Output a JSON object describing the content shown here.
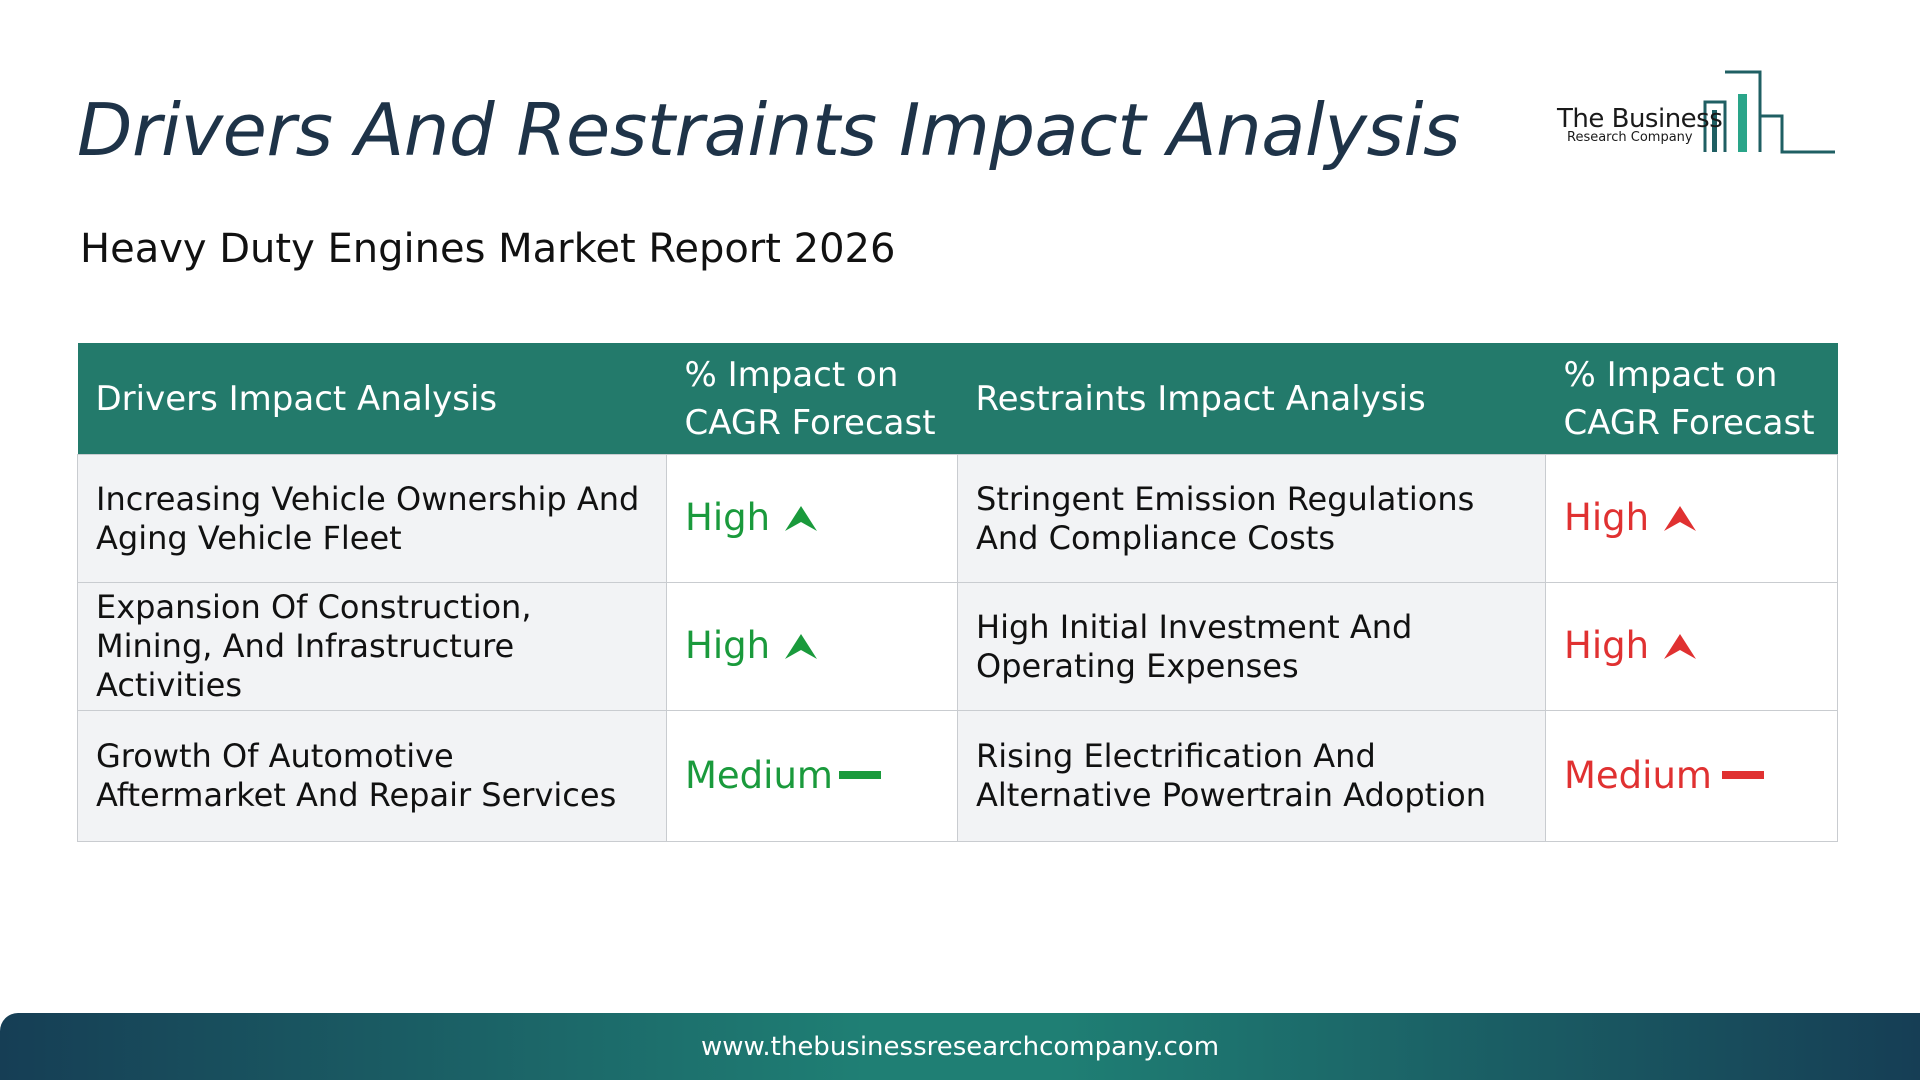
{
  "header": {
    "title": "Drivers And Restraints Impact Analysis",
    "subtitle": "Heavy Duty Engines Market Report 2026"
  },
  "logo": {
    "name": "The Business",
    "tagline": "Research Company"
  },
  "table": {
    "headers": {
      "drivers": "Drivers Impact Analysis",
      "drivers_impact": "% Impact on CAGR Forecast",
      "restraints": "Restraints Impact Analysis",
      "restraints_impact": "% Impact on CAGR Forecast"
    },
    "rows": [
      {
        "driver": "Increasing Vehicle Ownership And Aging Vehicle Fleet",
        "driver_impact": "High",
        "driver_icon": "arrow-up-icon",
        "restraint": "Stringent Emission Regulations And Compliance Costs",
        "restraint_impact": "High",
        "restraint_icon": "arrow-up-icon"
      },
      {
        "driver": "Expansion Of Construction, Mining, And Infrastructure Activities",
        "driver_impact": "High",
        "driver_icon": "arrow-up-icon",
        "restraint": "High Initial Investment And Operating Expenses",
        "restraint_impact": "High",
        "restraint_icon": "arrow-up-icon"
      },
      {
        "driver": "Growth Of Automotive Aftermarket And Repair Services",
        "driver_impact": "Medium",
        "driver_icon": "dash-icon",
        "restraint": "Rising Electrification And Alternative Powertrain Adoption",
        "restraint_impact": "Medium",
        "restraint_icon": "dash-icon"
      }
    ]
  },
  "footer": {
    "url": "www.thebusinessresearchcompany.com"
  },
  "colors": {
    "header_bg": "#237a6b",
    "driver_impact": "#1a9a3c",
    "restraint_impact": "#e03131",
    "title": "#1e3348"
  }
}
